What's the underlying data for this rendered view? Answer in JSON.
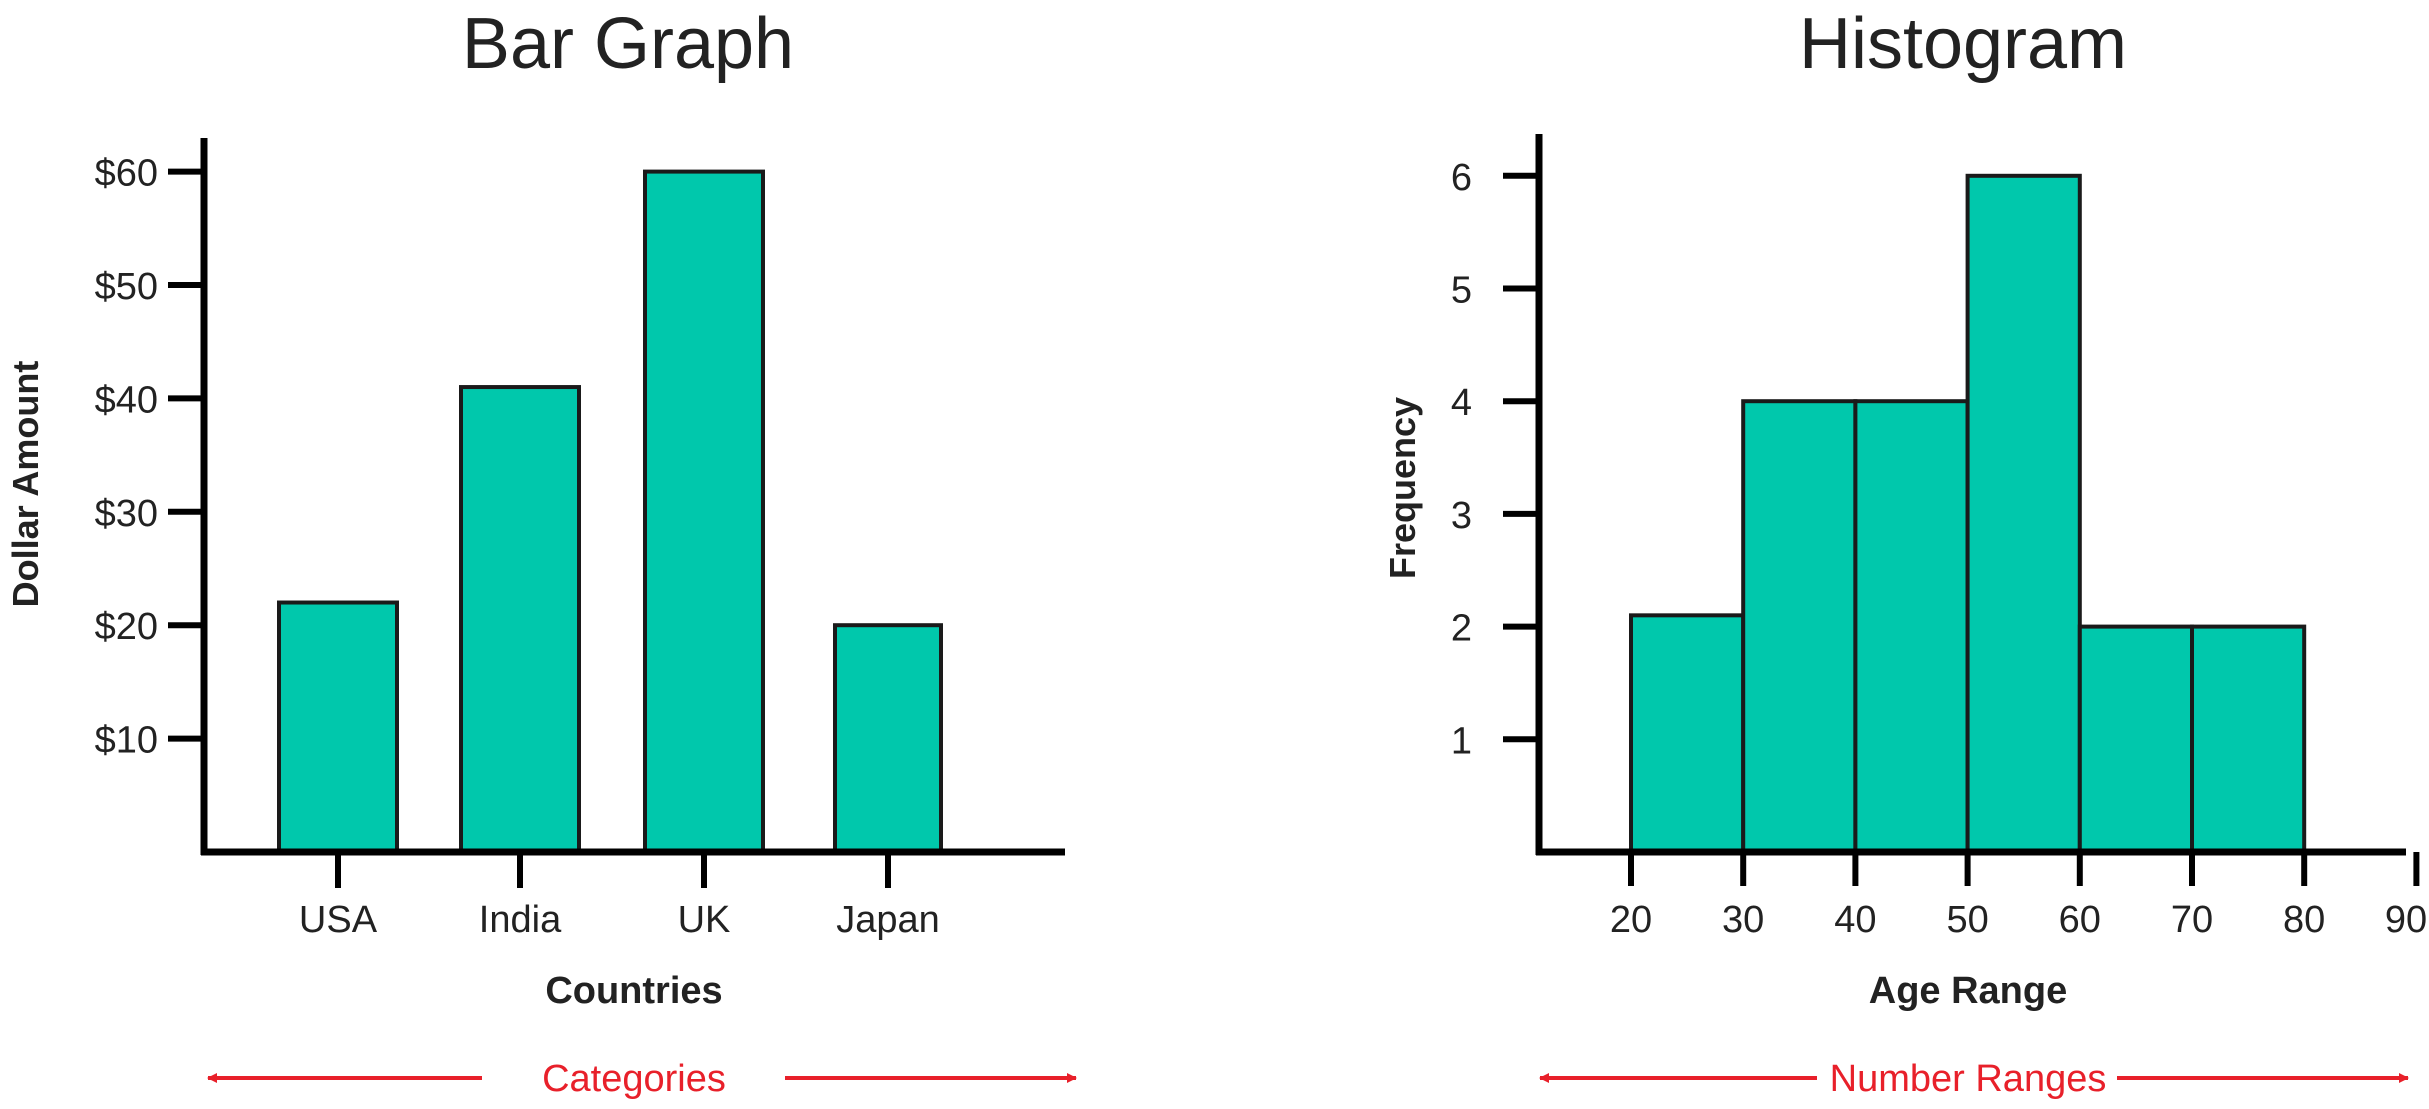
{
  "colors": {
    "bar_fill": "#00c8ac",
    "bar_stroke": "#1a1a1a",
    "axis": "#000000",
    "text": "#222222",
    "annotation": "#e8202a"
  },
  "chart_data": [
    {
      "type": "bar",
      "title": "Bar Graph",
      "xlabel": "Countries",
      "ylabel": "Dollar Amount",
      "categories": [
        "USA",
        "India",
        "UK",
        "Japan"
      ],
      "values": [
        22,
        41,
        60,
        20
      ],
      "yticks": [
        10,
        20,
        30,
        40,
        50,
        60
      ],
      "ytick_labels": [
        "$10",
        "$20",
        "$30",
        "$40",
        "$50",
        "$60"
      ],
      "ylim": [
        0,
        66
      ],
      "grid": false,
      "annotation": "Categories"
    },
    {
      "type": "bar",
      "title": "Histogram",
      "xlabel": "Age Range",
      "ylabel": "Frequency",
      "bins": [
        [
          20,
          30
        ],
        [
          30,
          40
        ],
        [
          40,
          50
        ],
        [
          50,
          60
        ],
        [
          60,
          70
        ],
        [
          70,
          80
        ]
      ],
      "values": [
        2.1,
        4,
        4,
        6,
        2,
        2
      ],
      "xticks": [
        20,
        30,
        40,
        50,
        60,
        70,
        80,
        90
      ],
      "xtick_labels": [
        "20",
        "30",
        "40",
        "50",
        "60",
        "70",
        "80",
        "90"
      ],
      "yticks": [
        1,
        2,
        3,
        4,
        5,
        6
      ],
      "ytick_labels": [
        "1",
        "2",
        "3",
        "4",
        "5",
        "6"
      ],
      "xlim": [
        11.5,
        90
      ],
      "ylim": [
        0,
        6.6
      ],
      "grid": false,
      "annotation": "Number Ranges"
    }
  ]
}
